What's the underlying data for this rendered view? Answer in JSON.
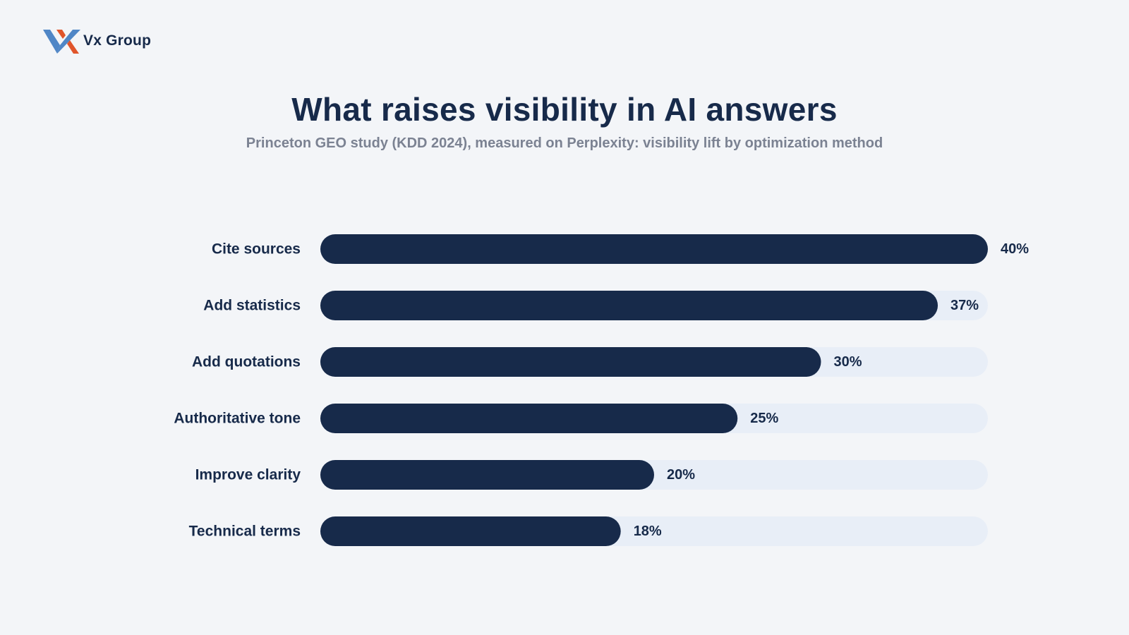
{
  "brand": {
    "name": "Vx Group",
    "logo_icon": "vx-logo-mark",
    "colors": {
      "blue": "#4f86c6",
      "orange": "#e0552b"
    }
  },
  "colors": {
    "background": "#f3f5f8",
    "bar": "#172a4a",
    "track": "#e8eef7",
    "subtitle": "#7b8292"
  },
  "chart_data": {
    "type": "bar",
    "orientation": "horizontal",
    "title": "What raises visibility in AI answers",
    "subtitle": "Princeton GEO study (KDD 2024), measured on Perplexity: visibility lift by optimization method",
    "categories": [
      "Cite sources",
      "Add statistics",
      "Add quotations",
      "Authoritative tone",
      "Improve clarity",
      "Technical terms"
    ],
    "values": [
      40,
      37,
      30,
      25,
      20,
      18
    ],
    "value_labels": [
      "40%",
      "37%",
      "30%",
      "25%",
      "20%",
      "18%"
    ],
    "unit": "%",
    "xlim": [
      0,
      40
    ],
    "grid": false,
    "legend": "none"
  }
}
